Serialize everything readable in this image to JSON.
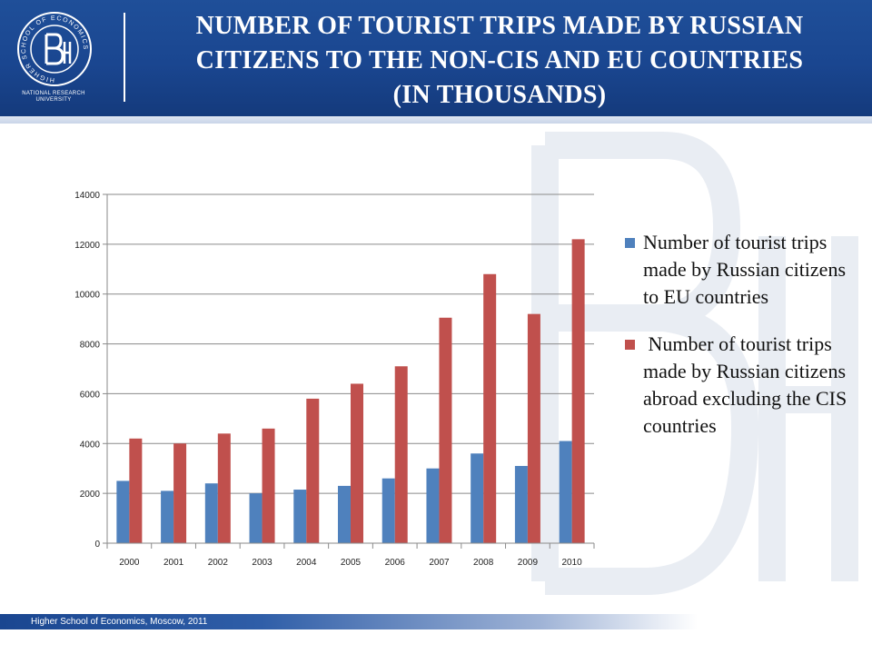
{
  "header": {
    "title_lines": [
      "NUMBER OF TOURIST TRIPS MADE BY RUSSIAN",
      "CITIZENS TO THE NON-CIS AND EU COUNTRIES",
      "(IN THOUSANDS)"
    ],
    "logo_caption_lines": [
      "NATIONAL RESEARCH",
      "UNIVERSITY"
    ],
    "logo_ring_text": "HIGHER SCHOOL OF ECONOMICS",
    "colors": {
      "band": "#1a4690",
      "text": "#ffffff"
    }
  },
  "footer": {
    "text": "Higher School of Economics, Moscow, 2011"
  },
  "chart_data": {
    "type": "bar",
    "categories": [
      "2000",
      "2001",
      "2002",
      "2003",
      "2004",
      "2005",
      "2006",
      "2007",
      "2008",
      "2009",
      "2010"
    ],
    "series": [
      {
        "name": "Number of tourist trips made by Russian citizens to EU countries",
        "color": "#4f81bd",
        "values": [
          2500,
          2100,
          2400,
          2000,
          2150,
          2300,
          2600,
          3000,
          3600,
          3100,
          4100
        ]
      },
      {
        "name": " Number of tourist trips made by Russian citizens abroad excluding the CIS countries",
        "color": "#c0504d",
        "values": [
          4200,
          4000,
          4400,
          4600,
          5800,
          6400,
          7100,
          9050,
          10800,
          9200,
          12200
        ]
      }
    ],
    "ylim": [
      0,
      14000
    ],
    "yticks": [
      "0",
      "2000",
      "4000",
      "6000",
      "8000",
      "10000",
      "12000",
      "14000"
    ],
    "grid": true,
    "legend_position": "right"
  }
}
